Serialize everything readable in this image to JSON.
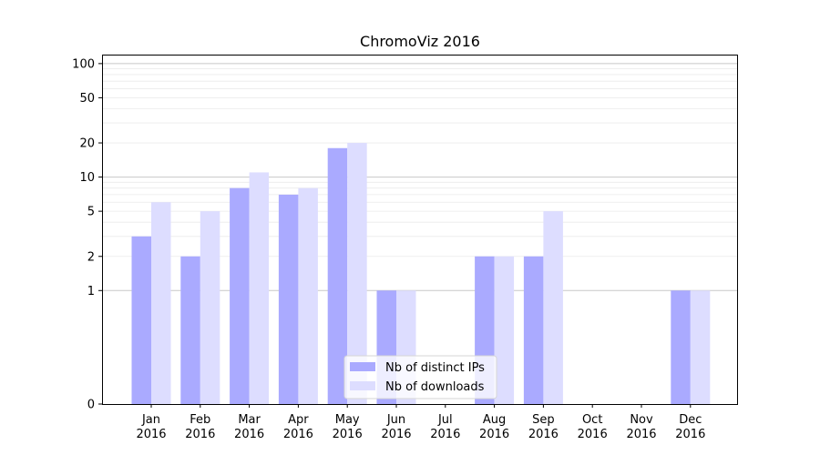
{
  "chart_data": {
    "type": "bar",
    "title": "ChromoViz 2016",
    "categories": [
      "Jan\n2016",
      "Feb\n2016",
      "Mar\n2016",
      "Apr\n2016",
      "May\n2016",
      "Jun\n2016",
      "Jul\n2016",
      "Aug\n2016",
      "Sep\n2016",
      "Oct\n2016",
      "Nov\n2016",
      "Dec\n2016"
    ],
    "series": [
      {
        "name": "Nb of distinct IPs",
        "values": [
          3,
          2,
          8,
          7,
          18,
          1,
          0,
          2,
          2,
          0,
          0,
          1
        ],
        "color": "#aaaaff"
      },
      {
        "name": "Nb of downloads",
        "values": [
          6,
          5,
          11,
          8,
          20,
          1,
          0,
          2,
          5,
          0,
          0,
          1
        ],
        "color": "#ddddff"
      }
    ],
    "yscale": "symlog",
    "ylim": [
      0,
      120
    ],
    "yticks": [
      0,
      1,
      2,
      5,
      10,
      20,
      50,
      100
    ],
    "ytick_labels": [
      "0",
      "1",
      "2",
      "5",
      "10",
      "20",
      "50",
      "100"
    ],
    "grid": true,
    "legend": "bottom-center"
  }
}
